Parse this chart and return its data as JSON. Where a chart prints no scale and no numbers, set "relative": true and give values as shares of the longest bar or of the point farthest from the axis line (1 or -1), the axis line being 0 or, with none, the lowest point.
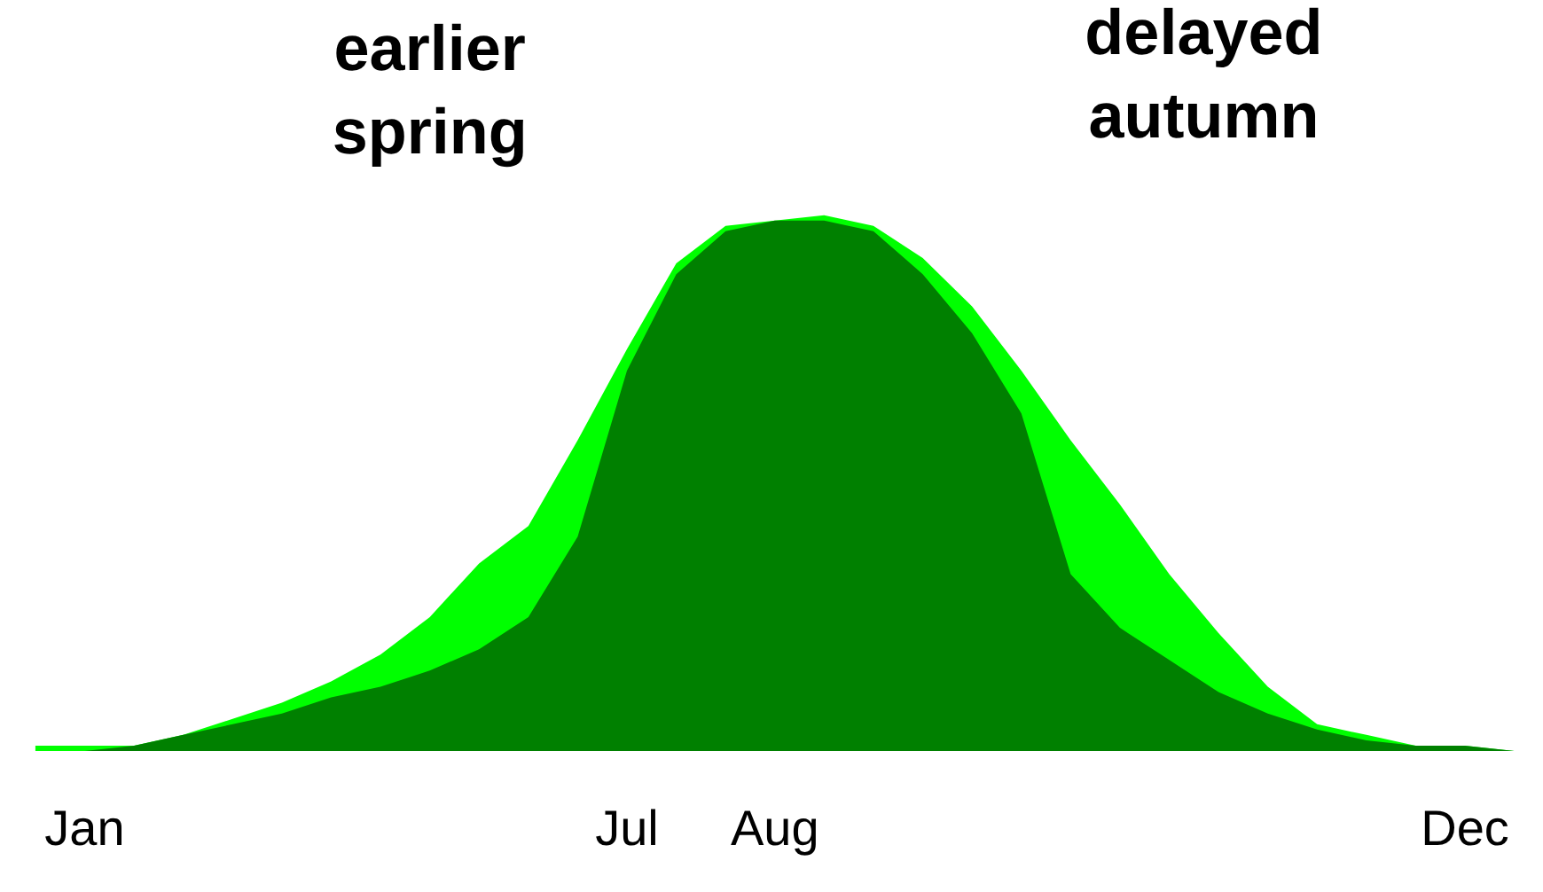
{
  "chart_data": {
    "type": "area",
    "relative": true,
    "grid": false,
    "categories": [
      null,
      "Jan",
      null,
      null,
      null,
      null,
      null,
      null,
      null,
      null,
      null,
      null,
      "Jul",
      null,
      null,
      "Aug",
      null,
      null,
      null,
      null,
      null,
      null,
      null,
      null,
      null,
      null,
      null,
      null,
      null,
      "Dec",
      null
    ],
    "series": [
      {
        "color": "#00ff00",
        "values": [
          0.01,
          0.01,
          0.01,
          0.03,
          0.06,
          0.09,
          0.13,
          0.18,
          0.25,
          0.35,
          0.42,
          0.58,
          0.75,
          0.91,
          0.98,
          0.99,
          1,
          0.98,
          0.92,
          0.83,
          0.71,
          0.58,
          0.46,
          0.33,
          0.22,
          0.12,
          0.05,
          0.03,
          0.01,
          0.01,
          0
        ]
      },
      {
        "color": "#008000",
        "values": [
          0,
          0,
          0.01,
          0.03,
          0.05,
          0.07,
          0.1,
          0.12,
          0.15,
          0.19,
          0.25,
          0.4,
          0.71,
          0.89,
          0.97,
          0.99,
          0.99,
          0.97,
          0.89,
          0.78,
          0.63,
          0.33,
          0.23,
          0.17,
          0.11,
          0.07,
          0.04,
          0.02,
          0.01,
          0.01,
          0
        ]
      }
    ],
    "annotations": [
      "earlier\nspring",
      "delayed\nautumn"
    ]
  }
}
